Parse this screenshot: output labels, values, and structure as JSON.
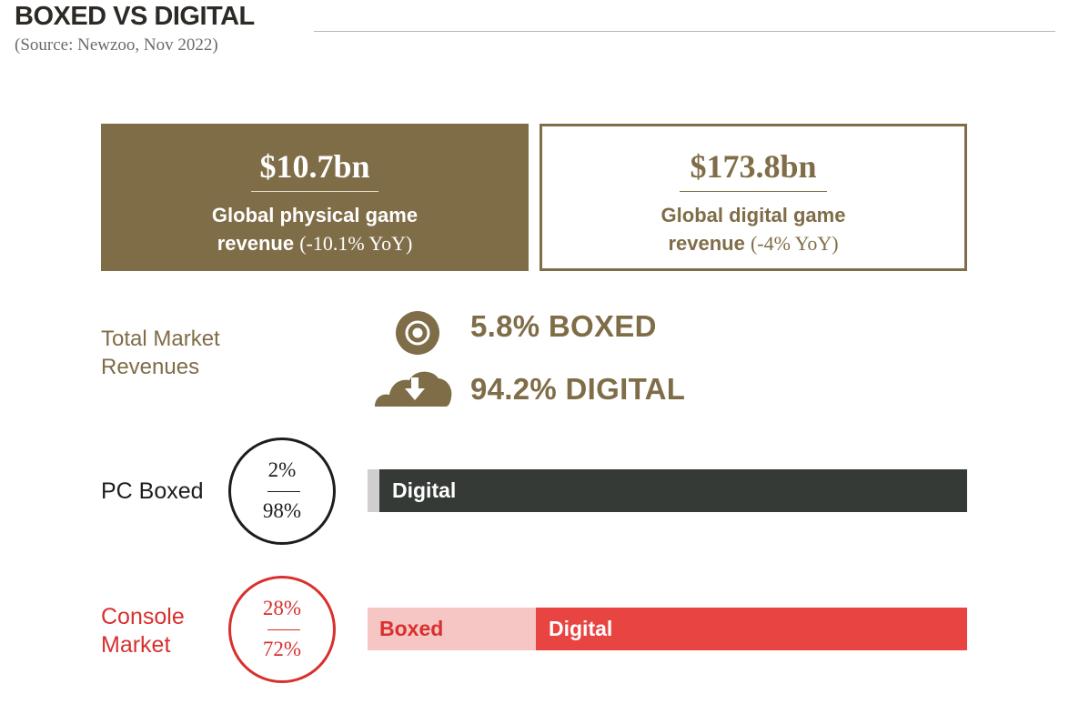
{
  "header": {
    "title": "BOXED VS DIGITAL",
    "source": "(Source: Newzoo, Nov 2022)"
  },
  "cards": {
    "physical": {
      "amount": "$10.7bn",
      "line1": "Global physical game",
      "line2": "revenue",
      "yoy": "(-10.1% YoY)"
    },
    "digital": {
      "amount": "$173.8bn",
      "line1": "Global digital game",
      "line2": "revenue",
      "yoy": "(-4% YoY)"
    }
  },
  "total_market": {
    "label_line1": "Total Market",
    "label_line2": "Revenues",
    "boxed_text": "5.8% BOXED",
    "digital_text": "94.2% DIGITAL",
    "boxed_icon": "disc-icon",
    "digital_icon": "cloud-download-icon"
  },
  "rows": {
    "pc": {
      "label": "PC Boxed",
      "boxed_pct_text": "2%",
      "digital_pct_text": "98%",
      "digital_bar_label": "Digital"
    },
    "console": {
      "label_line1": "Console",
      "label_line2": "Market",
      "boxed_pct_text": "28%",
      "digital_pct_text": "72%",
      "boxed_bar_label": "Boxed",
      "digital_bar_label": "Digital"
    }
  },
  "colors": {
    "gold": "#7f6d47",
    "pc_boxed": "#cfcfcf",
    "pc_digital": "#353a37",
    "console_boxed": "#f5c6c4",
    "console_digital": "#e84442",
    "console_text": "#d8302e"
  },
  "chart_data": {
    "type": "bar",
    "categories": [
      "PC",
      "Console"
    ],
    "series": [
      {
        "name": "Boxed",
        "values": [
          2,
          28
        ]
      },
      {
        "name": "Digital",
        "values": [
          98,
          72
        ]
      }
    ],
    "total_market": {
      "boxed": 5.8,
      "digital": 94.2
    },
    "revenue_bn": {
      "physical": 10.7,
      "digital": 173.8
    },
    "yoy_percent": {
      "physical": -10.1,
      "digital": -4
    },
    "ylim": [
      0,
      100
    ]
  }
}
